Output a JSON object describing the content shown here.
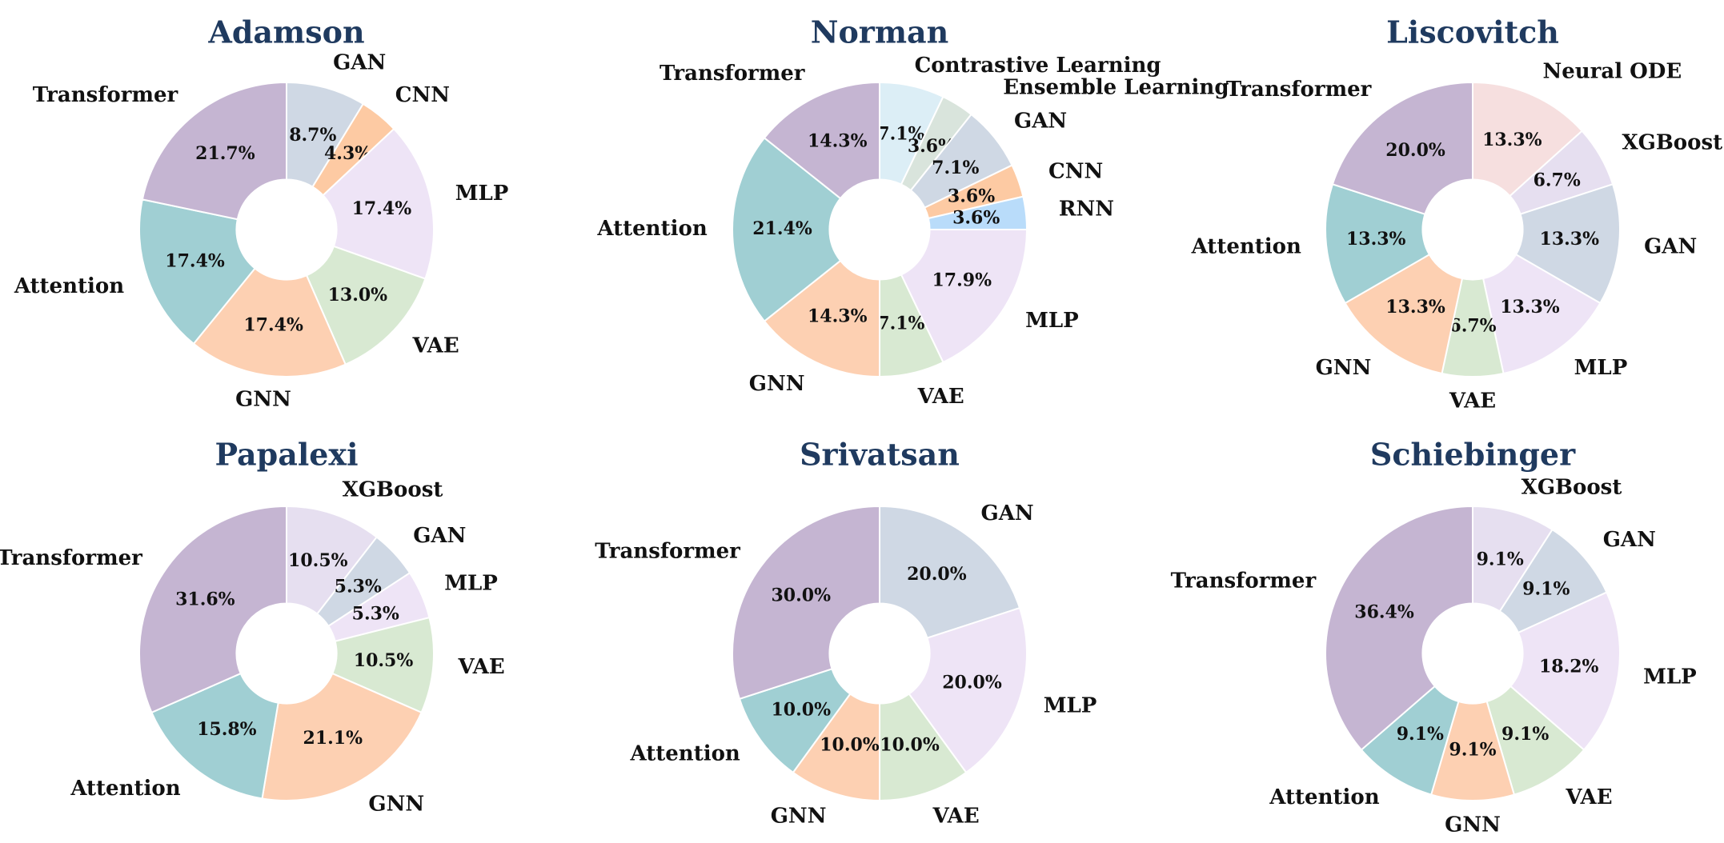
{
  "colors": {
    "Transformer": "#c5b5d2",
    "Attention": "#a0cfd3",
    "GNN": "#fdd0b2",
    "VAE": "#d8e9d2",
    "MLP": "#eee4f6",
    "CNN": "#fdcaa3",
    "GAN": "#cfd8e4",
    "RNN": "#b9dcfa",
    "Contrastive Learning": "#dceef6",
    "Ensemble Learning": "#d9e4dc",
    "Neural ODE": "#f6dfdf",
    "XGBoost": "#e6dff0",
    "title": "#1f3a5f"
  },
  "chart_data": [
    {
      "type": "pie",
      "title": "Adamson",
      "hole": "donut",
      "slices": [
        {
          "label": "GAN",
          "value": 8.7,
          "pct_text": "8.7%"
        },
        {
          "label": "CNN",
          "value": 4.3,
          "pct_text": "4.3%"
        },
        {
          "label": "MLP",
          "value": 17.4,
          "pct_text": "17.4%"
        },
        {
          "label": "VAE",
          "value": 13.0,
          "pct_text": "13.0%"
        },
        {
          "label": "GNN",
          "value": 17.4,
          "pct_text": "17.4%"
        },
        {
          "label": "Attention",
          "value": 17.4,
          "pct_text": "17.4%"
        },
        {
          "label": "Transformer",
          "value": 21.7,
          "pct_text": "21.7%"
        }
      ]
    },
    {
      "type": "pie",
      "title": "Norman",
      "hole": "donut",
      "slices": [
        {
          "label": "Contrastive Learning",
          "value": 7.1,
          "pct_text": "7.1%"
        },
        {
          "label": "Ensemble Learning",
          "value": 3.6,
          "pct_text": "3.6%"
        },
        {
          "label": "GAN",
          "value": 7.1,
          "pct_text": "7.1%"
        },
        {
          "label": "CNN",
          "value": 3.6,
          "pct_text": "3.6%"
        },
        {
          "label": "RNN",
          "value": 3.6,
          "pct_text": "3.6%"
        },
        {
          "label": "MLP",
          "value": 17.9,
          "pct_text": "17.9%"
        },
        {
          "label": "VAE",
          "value": 7.1,
          "pct_text": "7.1%"
        },
        {
          "label": "GNN",
          "value": 14.3,
          "pct_text": "14.3%"
        },
        {
          "label": "Attention",
          "value": 21.4,
          "pct_text": "21.4%"
        },
        {
          "label": "Transformer",
          "value": 14.3,
          "pct_text": "14.3%"
        }
      ]
    },
    {
      "type": "pie",
      "title": "Liscovitch",
      "hole": "donut",
      "slices": [
        {
          "label": "Neural ODE",
          "value": 13.3,
          "pct_text": "13.3%"
        },
        {
          "label": "XGBoost",
          "value": 6.7,
          "pct_text": "6.7%"
        },
        {
          "label": "GAN",
          "value": 13.3,
          "pct_text": "13.3%"
        },
        {
          "label": "MLP",
          "value": 13.3,
          "pct_text": "13.3%"
        },
        {
          "label": "VAE",
          "value": 6.7,
          "pct_text": "6.7%"
        },
        {
          "label": "GNN",
          "value": 13.3,
          "pct_text": "13.3%"
        },
        {
          "label": "Attention",
          "value": 13.3,
          "pct_text": "13.3%"
        },
        {
          "label": "Transformer",
          "value": 20.0,
          "pct_text": "20.0%"
        }
      ]
    },
    {
      "type": "pie",
      "title": "Papalexi",
      "hole": "donut",
      "slices": [
        {
          "label": "XGBoost",
          "value": 10.5,
          "pct_text": "10.5%"
        },
        {
          "label": "GAN",
          "value": 5.3,
          "pct_text": "5.3%"
        },
        {
          "label": "MLP",
          "value": 5.3,
          "pct_text": "5.3%"
        },
        {
          "label": "VAE",
          "value": 10.5,
          "pct_text": "10.5%"
        },
        {
          "label": "GNN",
          "value": 21.1,
          "pct_text": "21.1%"
        },
        {
          "label": "Attention",
          "value": 15.8,
          "pct_text": "15.8%"
        },
        {
          "label": "Transformer",
          "value": 31.6,
          "pct_text": "31.6%"
        }
      ]
    },
    {
      "type": "pie",
      "title": "Srivatsan",
      "hole": "donut",
      "slices": [
        {
          "label": "GAN",
          "value": 20.0,
          "pct_text": "20.0%"
        },
        {
          "label": "MLP",
          "value": 20.0,
          "pct_text": "20.0%"
        },
        {
          "label": "VAE",
          "value": 10.0,
          "pct_text": "10.0%"
        },
        {
          "label": "GNN",
          "value": 10.0,
          "pct_text": "10.0%"
        },
        {
          "label": "Attention",
          "value": 10.0,
          "pct_text": "10.0%"
        },
        {
          "label": "Transformer",
          "value": 30.0,
          "pct_text": "30.0%"
        }
      ]
    },
    {
      "type": "pie",
      "title": "Schiebinger",
      "hole": "donut",
      "slices": [
        {
          "label": "XGBoost",
          "value": 9.1,
          "pct_text": "9.1%"
        },
        {
          "label": "GAN",
          "value": 9.1,
          "pct_text": "9.1%"
        },
        {
          "label": "MLP",
          "value": 18.2,
          "pct_text": "18.2%"
        },
        {
          "label": "VAE",
          "value": 9.1,
          "pct_text": "9.1%"
        },
        {
          "label": "GNN",
          "value": 9.1,
          "pct_text": "9.1%"
        },
        {
          "label": "Attention",
          "value": 9.1,
          "pct_text": "9.1%"
        },
        {
          "label": "Transformer",
          "value": 36.4,
          "pct_text": "36.4%"
        }
      ]
    }
  ]
}
